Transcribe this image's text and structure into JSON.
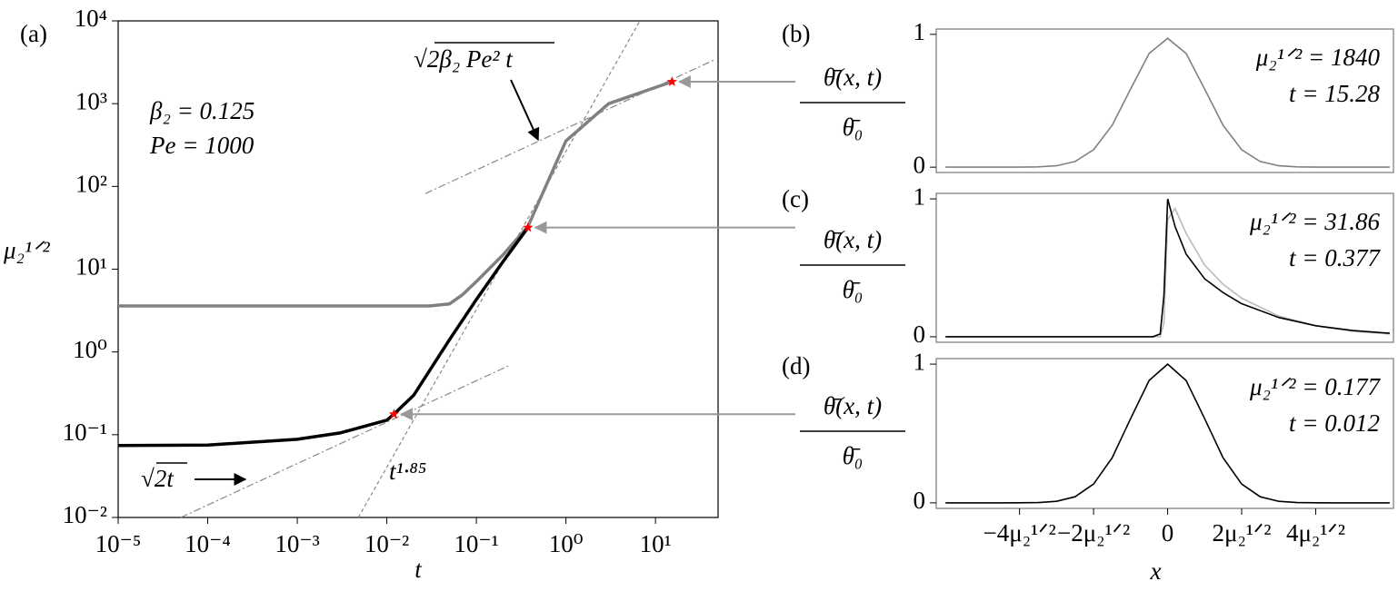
{
  "chart_data": [
    {
      "type": "line",
      "label": "(a)",
      "xlabel": "t",
      "ylabel": "μ₂¹ᐟ²",
      "xscale": "log",
      "yscale": "log",
      "xlim": [
        1e-05,
        50
      ],
      "ylim": [
        0.01,
        10000
      ],
      "xticks": [
        {
          "value": 1e-05,
          "label": "10⁻⁵"
        },
        {
          "value": 0.0001,
          "label": "10⁻⁴"
        },
        {
          "value": 0.001,
          "label": "10⁻³"
        },
        {
          "value": 0.01,
          "label": "10⁻²"
        },
        {
          "value": 0.1,
          "label": "10⁻¹"
        },
        {
          "value": 1,
          "label": "10⁰"
        },
        {
          "value": 10,
          "label": "10¹"
        }
      ],
      "yticks": [
        {
          "value": 0.01,
          "label": "10⁻²"
        },
        {
          "value": 0.1,
          "label": "10⁻¹"
        },
        {
          "value": 1,
          "label": "10⁰"
        },
        {
          "value": 10,
          "label": "10¹"
        },
        {
          "value": 100,
          "label": "10²"
        },
        {
          "value": 1000,
          "label": "10³"
        },
        {
          "value": 10000,
          "label": "10⁴"
        }
      ],
      "series": [
        {
          "color": "#888888",
          "style": "dashdot",
          "x": [
            5e-05,
            0.23
          ],
          "values": [
            0.01,
            0.68
          ]
        },
        {
          "color": "#888888",
          "style": "dashed",
          "x": [
            0.0048,
            6.7
          ],
          "values": [
            0.01,
            10000
          ]
        },
        {
          "color": "#888888",
          "style": "dashdot",
          "x": [
            0.027,
            46
          ],
          "values": [
            82,
            3400
          ]
        },
        {
          "color": "#808080",
          "x": [
            1e-05,
            0.0001,
            0.001,
            0.01,
            0.03,
            0.05,
            0.07,
            0.1,
            0.2,
            0.377,
            1,
            3,
            15.28
          ],
          "values": [
            3.6,
            3.6,
            3.6,
            3.6,
            3.6,
            3.8,
            4.9,
            7.1,
            15,
            33,
            355,
            1000,
            1840
          ]
        },
        {
          "color": "#000000",
          "x": [
            1e-05,
            0.0001,
            0.001,
            0.003,
            0.01,
            0.012,
            0.02,
            0.05,
            0.1,
            0.2,
            0.377
          ],
          "values": [
            0.074,
            0.075,
            0.088,
            0.105,
            0.15,
            0.177,
            0.3,
            1.4,
            4.3,
            12.5,
            31.86
          ]
        },
        {
          "color": "#ff0000",
          "marker": "star",
          "x": [
            0.012,
            0.377,
            15.28
          ],
          "values": [
            0.177,
            31.86,
            1840
          ]
        }
      ],
      "annotations": [
        "β₂ = 0.125",
        "Pe = 1000",
        "√2t",
        "t¹·⁸⁵",
        "√2β₂ Pe² t"
      ]
    },
    {
      "type": "line",
      "label": "(b)",
      "ylabel": {
        "numerator": "θ̄(x, t)",
        "denominator": "θ̄₀"
      },
      "xlim": [
        -6.25,
        6.1
      ],
      "ylim": [
        -0.04,
        1.04
      ],
      "yticks": [
        0,
        1
      ],
      "series": [
        {
          "color": "#808080",
          "x": [
            -6,
            -5.5,
            -5,
            -4.5,
            -4,
            -3.5,
            -3,
            -2.5,
            -2,
            -1.5,
            -1,
            -0.5,
            0,
            0.5,
            1,
            1.5,
            2,
            2.5,
            3,
            3.5,
            4,
            4.5,
            5,
            5.5,
            6
          ],
          "values": [
            0,
            0,
            0,
            0,
            0.0003,
            0.0021,
            0.0108,
            0.0426,
            0.1313,
            0.315,
            0.5883,
            0.856,
            0.97,
            0.856,
            0.5883,
            0.315,
            0.1313,
            0.0426,
            0.0108,
            0.0021,
            0.0003,
            0,
            0,
            0,
            0
          ]
        }
      ],
      "annotations": [
        "μ₂¹ᐟ² = 1840",
        "t = 15.28"
      ]
    },
    {
      "type": "line",
      "label": "(c)",
      "ylabel": {
        "numerator": "θ̄(x, t)",
        "denominator": "θ̄₀"
      },
      "xlim": [
        -6.25,
        6.1
      ],
      "ylim": [
        -0.04,
        1.04
      ],
      "yticks": [
        0,
        1
      ],
      "series": [
        {
          "color": "#bbbbbb",
          "x": [
            -6,
            -3,
            -1,
            -0.4,
            -0.2,
            -0.1,
            0,
            0.2,
            0.5,
            1,
            1.5,
            2,
            3,
            4,
            5,
            6
          ],
          "values": [
            0,
            0,
            0,
            0,
            0,
            0.1,
            0.85,
            0.93,
            0.75,
            0.52,
            0.38,
            0.28,
            0.15,
            0.08,
            0.04,
            0.02
          ]
        },
        {
          "color": "#000000",
          "x": [
            -6,
            -3,
            -1,
            -0.4,
            -0.2,
            -0.1,
            0,
            0.2,
            0.5,
            1,
            1.5,
            2,
            3,
            4,
            5,
            6
          ],
          "values": [
            0,
            0,
            0,
            0,
            0.02,
            0.3,
            1.0,
            0.8,
            0.6,
            0.42,
            0.32,
            0.24,
            0.14,
            0.08,
            0.045,
            0.025
          ]
        }
      ],
      "annotations": [
        "μ₂¹ᐟ² = 31.86",
        "t = 0.377"
      ]
    },
    {
      "type": "line",
      "label": "(d)",
      "ylabel": {
        "numerator": "θ̄(x, t)",
        "denominator": "θ̄₀"
      },
      "xlabel": "x",
      "xlim": [
        -6.25,
        6.1
      ],
      "ylim": [
        -0.04,
        1.04
      ],
      "yticks": [
        0,
        1
      ],
      "xticks": [
        {
          "value": -4,
          "label": "−4μ₂¹ᐟ²"
        },
        {
          "value": -2,
          "label": "−2μ₂¹ᐟ²"
        },
        0,
        {
          "value": 2,
          "label": "2μ₂¹ᐟ²"
        },
        {
          "value": 4,
          "label": "4μ₂¹ᐟ²"
        }
      ],
      "series": [
        {
          "color": "#000000",
          "x": [
            -6,
            -5.5,
            -5,
            -4.5,
            -4,
            -3.5,
            -3,
            -2.5,
            -2,
            -1.5,
            -1,
            -0.5,
            0,
            0.5,
            1,
            1.5,
            2,
            2.5,
            3,
            3.5,
            4,
            4.5,
            5,
            5.5,
            6
          ],
          "values": [
            0,
            0,
            0,
            0,
            0.0003,
            0.0022,
            0.0111,
            0.0439,
            0.1353,
            0.3247,
            0.6065,
            0.8825,
            1,
            0.8825,
            0.6065,
            0.3247,
            0.1353,
            0.0439,
            0.0111,
            0.0022,
            0.0003,
            0,
            0,
            0,
            0
          ]
        }
      ],
      "annotations": [
        "μ₂¹ᐟ² = 0.177",
        "t = 0.012"
      ]
    }
  ]
}
